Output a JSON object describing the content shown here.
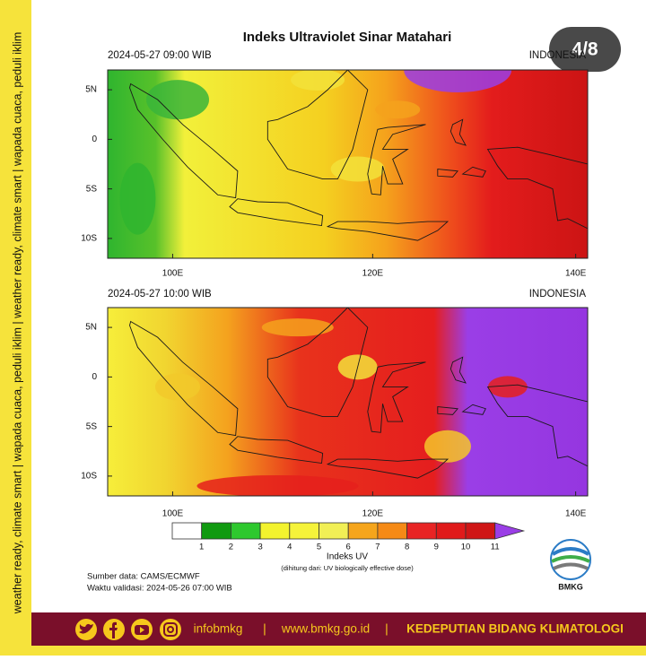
{
  "header": {
    "title": "Indeks Ultraviolet Sinar Matahari",
    "badge": "4/8"
  },
  "maps": [
    {
      "time": "2024-05-27  09:00 WIB",
      "region": "INDONESIA",
      "lat_labels": [
        "5N",
        "0",
        "5S",
        "10S"
      ],
      "lon_labels": [
        "100E",
        "120E",
        "140E"
      ]
    },
    {
      "time": "2024-05-27  10:00 WIB",
      "region": "INDONESIA",
      "lat_labels": [
        "5N",
        "0",
        "5S",
        "10S"
      ],
      "lon_labels": [
        "100E",
        "120E",
        "140E"
      ]
    }
  ],
  "colorbar": {
    "labels": [
      "1",
      "2",
      "3",
      "4",
      "5",
      "6",
      "7",
      "8",
      "9",
      "10",
      "11"
    ],
    "title": "Indeks UV",
    "note": "(dihitung dari: UV biologically effective dose)"
  },
  "source": "Sumber data: CAMS/ECMWF",
  "validity": "Waktu validasi: 2024-05-26 07:00 WIB",
  "logo": "BMKG",
  "side_banner": "weather ready, climate smart  |  wapada cuaca, peduli iklim  |  weather ready, climate smart  |  wapada cuaca, peduli iklim",
  "footer": {
    "handle": "infobmkg",
    "separators": [
      "|",
      "|"
    ],
    "website": "www.bmkg.go.id",
    "unit": "KEDEPUTIAN BIDANG KLIMATOLOGI"
  }
}
